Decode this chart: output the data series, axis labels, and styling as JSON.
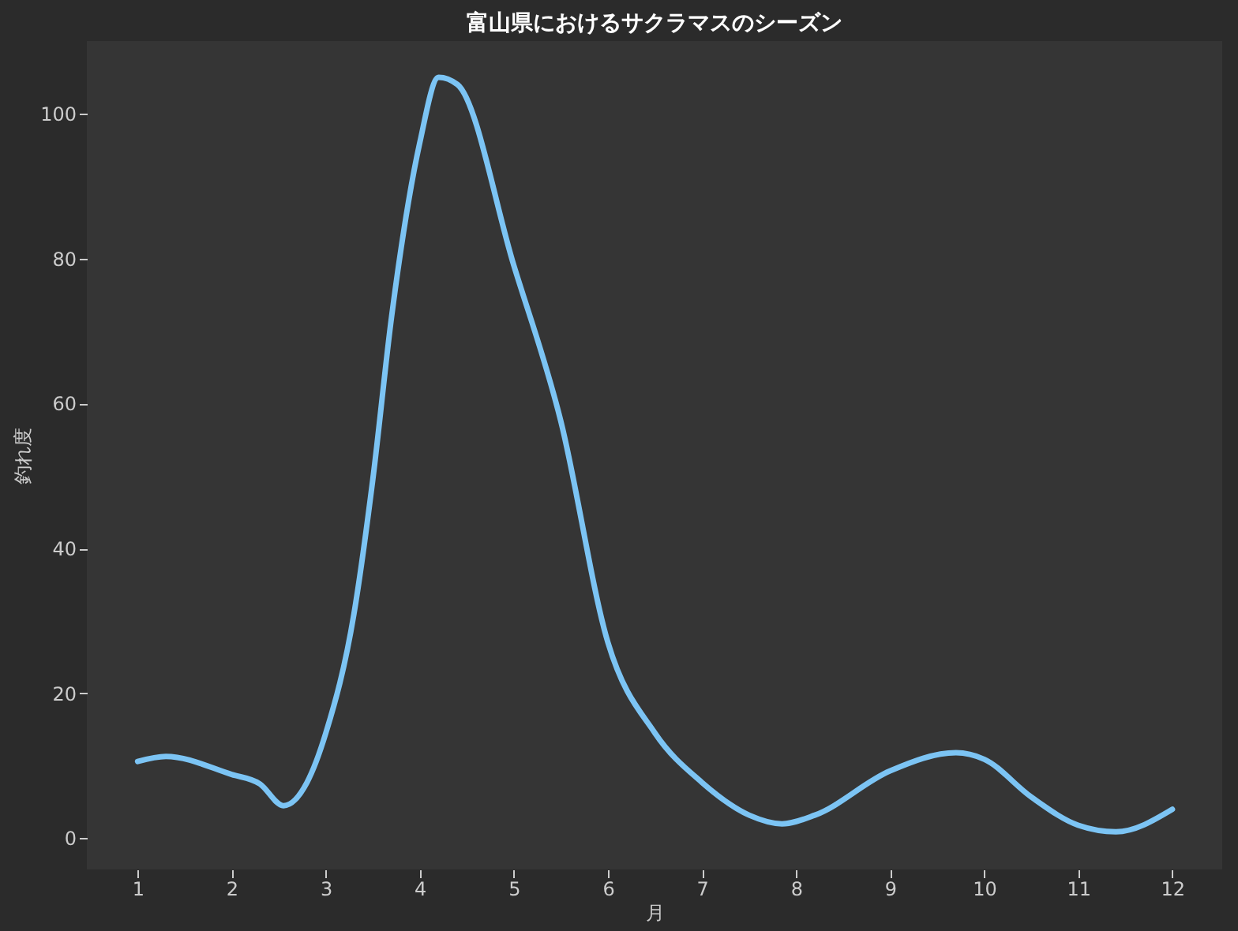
{
  "chart_data": {
    "type": "line",
    "title": "富山県におけるサクラマスのシーズン",
    "xlabel": "月",
    "ylabel": "釣れ度",
    "x": [
      1,
      1.3,
      2,
      2.3,
      2.55,
      2.8,
      3,
      3.3,
      3.5,
      3.7,
      4,
      4.2,
      4.4,
      5,
      5.5,
      6,
      6.5,
      7,
      7.5,
      7.85,
      8.2,
      9,
      9.7,
      10,
      10.5,
      11,
      11.4,
      12
    ],
    "series": [
      {
        "color": "#7cc4f4",
        "values": [
          10.6,
          11.3,
          8.8,
          7.5,
          4.5,
          7.7,
          14.5,
          31,
          49.5,
          72,
          96,
          105,
          104,
          79,
          57.5,
          27,
          14.5,
          7.7,
          3.2,
          2,
          3.2,
          9.3,
          11.8,
          10.9,
          5.7,
          1.8,
          0.9,
          4
        ]
      }
    ],
    "xlim": [
      0.46,
      12.53
    ],
    "xticks": [
      1,
      2,
      3,
      4,
      5,
      6,
      7,
      8,
      9,
      10,
      11,
      12
    ],
    "ylim": [
      -4.3,
      110
    ],
    "yticks": [
      0,
      20,
      40,
      60,
      80,
      100
    ],
    "grid": false,
    "marker": "none",
    "line_style": "solid"
  }
}
